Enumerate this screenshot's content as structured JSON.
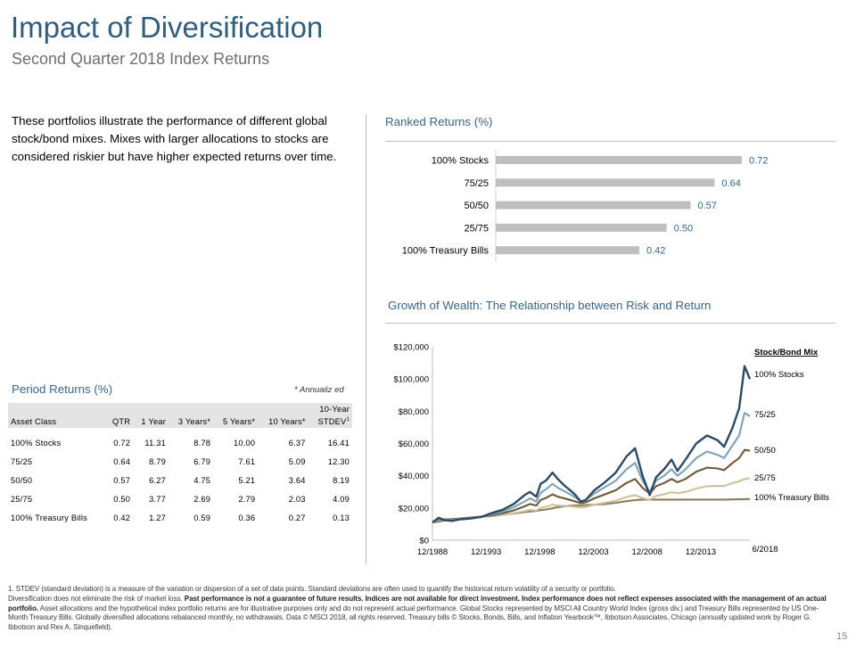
{
  "header": {
    "title": "Impact of Diversification",
    "subtitle": "Second Quarter 2018 Index Returns"
  },
  "intro_text": "These portfolios illustrate the performance of different global stock/bond mixes. Mixes with larger allocations to stocks are considered riskier but have higher expected returns over time.",
  "ranked": {
    "heading": "Ranked Returns (%)"
  },
  "growth": {
    "heading": "Growth of Wealth: The Relationship between Risk and Return",
    "legend_title": "Stock/Bond Mix"
  },
  "period": {
    "heading": "Period Returns (%)",
    "annualized_note": "* Annualiz ed",
    "stdev_header_line1": "10-Year",
    "stdev_header_line2": "STDEV",
    "stdev_footnote_mark": "1",
    "columns": [
      "Asset Class",
      "QTR",
      "1 Year",
      "3 Years*",
      "5 Years*",
      "10 Years*"
    ],
    "rows": [
      [
        "100% Stocks",
        "0.72",
        "11.31",
        "8.78",
        "10.00",
        "6.37",
        "16.41"
      ],
      [
        "75/25",
        "0.64",
        "8.79",
        "6.79",
        "7.61",
        "5.09",
        "12.30"
      ],
      [
        "50/50",
        "0.57",
        "6.27",
        "4.75",
        "5.21",
        "3.64",
        "8.19"
      ],
      [
        "25/75",
        "0.50",
        "3.77",
        "2.69",
        "2.79",
        "2.03",
        "4.09"
      ],
      [
        "100% Treasury Bills",
        "0.42",
        "1.27",
        "0.59",
        "0.36",
        "0.27",
        "0.13"
      ]
    ]
  },
  "footnotes": {
    "line1": "1. STDEV (standard deviation) is a measure of the variation or dispersion of a set of data points. Standard deviations are often used to quantify the historical return volatility of a security or portfolio.",
    "line2_a": "Diversification does not eliminate the risk of market loss. ",
    "line2_b": "Past performance is not a guarantee of future results. Indices are not available for direct investment. Index performance does not reflect expenses associated with the management of an actual portfolio.",
    "line2_c": " Asset allocations and the hypothetical index portfolio returns are for illustrative purposes only and do not represent actual performance. Global Stocks represented by MSCI All Country World Index (gross div.) and Treasury Bills represented by US One-Month Treasury Bills. Globally diversified allocations rebalanced monthly, no withdrawals. Data © MSCI 2018, all rights reserved. Treasury bills © Stocks, Bonds, Bills, and Inflation Yearbook™, Ibbotson Associates, Chicago (annually updated work by Roger G. Ibbotson and Rex A. Sinquefield)."
  },
  "page_number": "15",
  "colors": {
    "title": "#2f5f7d",
    "heading": "#3a6587",
    "bar": "#bfbfbf",
    "bar_label": "#3a6587",
    "stocks": "#2b4a66",
    "mix_75_25": "#7ea1b8",
    "mix_50_50": "#6b5a3a",
    "mix_25_75": "#cfc29a",
    "tbills": "#8a7d5c"
  },
  "chart_data": [
    {
      "type": "bar",
      "orientation": "horizontal",
      "title": "Ranked Returns (%)",
      "categories": [
        "100% Stocks",
        "75/25",
        "50/50",
        "25/75",
        "100% Treasury Bills"
      ],
      "values": [
        0.72,
        0.64,
        0.57,
        0.5,
        0.42
      ],
      "value_labels": [
        "0.72",
        "0.64",
        "0.57",
        "0.50",
        "0.42"
      ],
      "xlim": [
        0,
        0.75
      ]
    },
    {
      "type": "line",
      "title": "Growth of Wealth: The Relationship between Risk and Return",
      "x_ticks": [
        "12/1988",
        "12/1993",
        "12/1998",
        "12/2003",
        "12/2008",
        "12/2013",
        "6/2018"
      ],
      "y_ticks": [
        "$0",
        "$20,000",
        "$40,000",
        "$60,000",
        "$80,000",
        "$100,000",
        "$120,000"
      ],
      "ylim": [
        0,
        120000
      ],
      "xlim": [
        1988.92,
        2018.5
      ],
      "legend_title": "Stock/Bond Mix",
      "x": [
        1988.92,
        1989.5,
        1990.0,
        1990.75,
        1991.5,
        1992.5,
        1993.5,
        1994.5,
        1995.5,
        1996.5,
        1997.5,
        1998.0,
        1998.6,
        1999.0,
        1999.5,
        2000.1,
        2000.6,
        2001.2,
        2001.75,
        2002.25,
        2002.75,
        2003.2,
        2004.0,
        2005.0,
        2006.0,
        2007.0,
        2007.8,
        2008.5,
        2009.17,
        2009.75,
        2010.5,
        2011.2,
        2011.75,
        2012.5,
        2013.5,
        2014.5,
        2015.5,
        2016.1,
        2016.9,
        2017.5,
        2018.0,
        2018.5
      ],
      "series": [
        {
          "name": "100% Stocks",
          "color": "#2b4a66",
          "values": [
            11000,
            14000,
            12500,
            12000,
            13000,
            13500,
            14500,
            17000,
            19000,
            22500,
            28000,
            30000,
            27000,
            35000,
            37000,
            42000,
            38000,
            34000,
            31000,
            28000,
            24000,
            25000,
            31000,
            36000,
            42000,
            52000,
            57000,
            40000,
            28000,
            39000,
            44000,
            50000,
            43000,
            50000,
            60000,
            65000,
            62000,
            58000,
            70000,
            82000,
            108000,
            100000
          ]
        },
        {
          "name": "75/25",
          "color": "#7ea1b8",
          "values": [
            11000,
            13500,
            12800,
            12500,
            13300,
            13800,
            14600,
            16200,
            17800,
            20500,
            24000,
            26000,
            24000,
            29500,
            31500,
            35000,
            32500,
            30500,
            28500,
            26500,
            24000,
            25000,
            29000,
            33000,
            37000,
            44000,
            48000,
            37000,
            30000,
            37000,
            40000,
            44000,
            40000,
            44000,
            51000,
            55000,
            53000,
            51000,
            59000,
            65000,
            79000,
            77000
          ]
        },
        {
          "name": "50/50",
          "color": "#6b5a3a",
          "values": [
            11000,
            13000,
            12900,
            13000,
            13400,
            13900,
            14700,
            15500,
            16800,
            18500,
            21000,
            22500,
            21500,
            25000,
            26200,
            28500,
            27000,
            26000,
            25000,
            24000,
            23000,
            23500,
            26000,
            28500,
            31000,
            35500,
            38000,
            32500,
            29000,
            33500,
            35500,
            38000,
            36000,
            38000,
            42500,
            45000,
            44500,
            43500,
            48000,
            51000,
            56000,
            55500
          ]
        },
        {
          "name": "25/75",
          "color": "#cfc29a",
          "values": [
            11000,
            12500,
            12900,
            13200,
            13500,
            14000,
            14600,
            15000,
            15800,
            16800,
            18000,
            18800,
            18400,
            20200,
            20800,
            22000,
            21500,
            21300,
            21000,
            20700,
            20400,
            20600,
            22000,
            23300,
            24600,
            26800,
            28000,
            26200,
            25000,
            27500,
            28500,
            29800,
            29200,
            30000,
            32000,
            33500,
            33700,
            33600,
            35500,
            36500,
            38000,
            38500
          ]
        },
        {
          "name": "100% Treasury Bills",
          "color": "#8a7d5c",
          "values": [
            11000,
            11500,
            12300,
            13000,
            13600,
            14200,
            14600,
            15000,
            15800,
            16600,
            17400,
            17800,
            18200,
            18700,
            19100,
            19800,
            20500,
            21000,
            21400,
            21600,
            21700,
            21800,
            22000,
            22400,
            23200,
            24200,
            24900,
            25200,
            25200,
            25200,
            25200,
            25200,
            25200,
            25200,
            25200,
            25200,
            25200,
            25200,
            25300,
            25400,
            25500,
            25600
          ]
        }
      ]
    },
    {
      "type": "table",
      "title": "Period Returns (%)",
      "columns": [
        "Asset Class",
        "QTR",
        "1 Year",
        "3 Years*",
        "5 Years*",
        "10 Years*",
        "10-Year STDEV"
      ],
      "rows": [
        [
          "100% Stocks",
          0.72,
          11.31,
          8.78,
          10.0,
          6.37,
          16.41
        ],
        [
          "75/25",
          0.64,
          8.79,
          6.79,
          7.61,
          5.09,
          12.3
        ],
        [
          "50/50",
          0.57,
          6.27,
          4.75,
          5.21,
          3.64,
          8.19
        ],
        [
          "25/75",
          0.5,
          3.77,
          2.69,
          2.79,
          2.03,
          4.09
        ],
        [
          "100% Treasury Bills",
          0.42,
          1.27,
          0.59,
          0.36,
          0.27,
          0.13
        ]
      ]
    }
  ]
}
